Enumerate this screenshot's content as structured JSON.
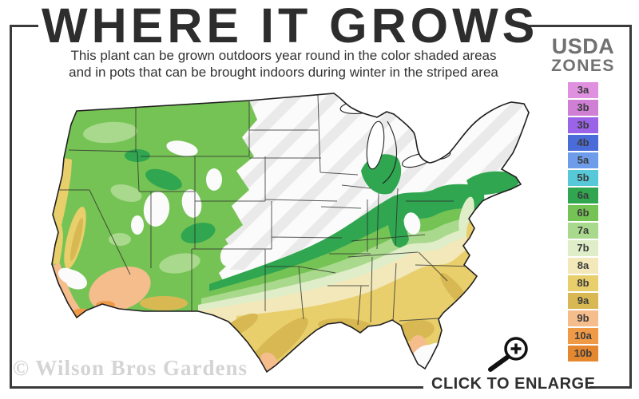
{
  "title": "WHERE IT GROWS",
  "subtitle": {
    "line1": "This plant can be grown outdoors year round in the color shaded areas",
    "line2": "and in pots that can be brought indoors during winter in the striped area"
  },
  "legend": {
    "heading_line1": "USDA",
    "heading_line2": "ZONES",
    "zones": [
      {
        "label": "3a",
        "color": "#df90df"
      },
      {
        "label": "3b",
        "color": "#cf7fd4"
      },
      {
        "label": "3b",
        "color": "#9b63e8"
      },
      {
        "label": "4b",
        "color": "#4a6cd8"
      },
      {
        "label": "5a",
        "color": "#6d9ceb"
      },
      {
        "label": "5b",
        "color": "#56c8d8"
      },
      {
        "label": "6a",
        "color": "#2fa64f"
      },
      {
        "label": "6b",
        "color": "#76c355"
      },
      {
        "label": "7a",
        "color": "#a9d98c"
      },
      {
        "label": "7b",
        "color": "#dfeec9"
      },
      {
        "label": "8a",
        "color": "#f2e8ba"
      },
      {
        "label": "8b",
        "color": "#e9cf6b"
      },
      {
        "label": "9a",
        "color": "#d8b852"
      },
      {
        "label": "9b",
        "color": "#f5bc8c"
      },
      {
        "label": "10a",
        "color": "#f09a47"
      },
      {
        "label": "10b",
        "color": "#e5872f"
      }
    ]
  },
  "map": {
    "region": "United States hardiness zone map",
    "unshaded_color": "#fbfbfb",
    "stripe_color": "#eaeaea",
    "outline_color": "#1f1f1f",
    "state_border_color": "#2f2f2f"
  },
  "watermark": "© Wilson Bros Gardens",
  "enlarge": {
    "label": "CLICK TO ENLARGE",
    "icon": "magnifier-plus-icon"
  },
  "frame_color": "#3a3a3a"
}
